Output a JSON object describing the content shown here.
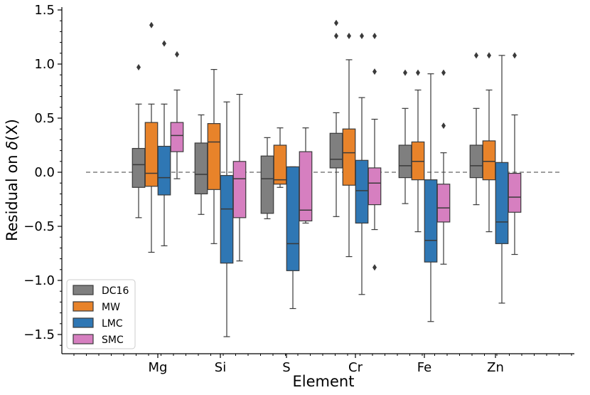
{
  "chart_data": {
    "type": "boxplot",
    "xlabel": "Element",
    "ylabel_prefix": "Residual on ",
    "ylabel_symbol": "δ",
    "ylabel_suffix": "(X)",
    "ylim": [
      -1.65,
      1.55
    ],
    "yticks": [
      1.5,
      1.0,
      0.5,
      0.0,
      -0.5,
      -1.0,
      -1.5
    ],
    "ytick_labels": [
      "1.5",
      "1.0",
      "0.5",
      "0.0",
      "−0.5",
      "−1.0",
      "−1.5"
    ],
    "categories": [
      "Mg",
      "Si",
      "S",
      "Cr",
      "Fe",
      "Zn"
    ],
    "reference_line": 0.0,
    "legend_position": "lower-left",
    "series": [
      {
        "name": "DC16",
        "color": "#7f7f7f",
        "boxes": [
          {
            "whislo": -0.42,
            "q1": -0.14,
            "med": 0.07,
            "q3": 0.22,
            "whishi": 0.63,
            "fliers": [
              0.97
            ]
          },
          {
            "whislo": -0.39,
            "q1": -0.2,
            "med": -0.02,
            "q3": 0.27,
            "whishi": 0.53,
            "fliers": []
          },
          {
            "whislo": -0.43,
            "q1": -0.38,
            "med": -0.06,
            "q3": 0.15,
            "whishi": 0.32,
            "fliers": []
          },
          {
            "whislo": -0.41,
            "q1": 0.04,
            "med": 0.12,
            "q3": 0.36,
            "whishi": 0.55,
            "fliers": [
              1.26,
              1.38
            ]
          },
          {
            "whislo": -0.29,
            "q1": -0.05,
            "med": 0.06,
            "q3": 0.25,
            "whishi": 0.59,
            "fliers": [
              0.92
            ]
          },
          {
            "whislo": -0.3,
            "q1": -0.05,
            "med": 0.06,
            "q3": 0.25,
            "whishi": 0.59,
            "fliers": [
              1.08
            ]
          }
        ]
      },
      {
        "name": "MW",
        "color": "#e8832a",
        "boxes": [
          {
            "whislo": -0.74,
            "q1": -0.13,
            "med": -0.01,
            "q3": 0.46,
            "whishi": 0.63,
            "fliers": [
              1.36
            ]
          },
          {
            "whislo": -0.66,
            "q1": -0.16,
            "med": 0.28,
            "q3": 0.45,
            "whishi": 0.95,
            "fliers": []
          },
          {
            "whislo": -0.14,
            "q1": -0.11,
            "med": -0.07,
            "q3": 0.25,
            "whishi": 0.41,
            "fliers": []
          },
          {
            "whislo": -0.78,
            "q1": -0.12,
            "med": 0.18,
            "q3": 0.4,
            "whishi": 1.04,
            "fliers": [
              1.26
            ]
          },
          {
            "whislo": -0.55,
            "q1": -0.07,
            "med": 0.1,
            "q3": 0.28,
            "whishi": 0.76,
            "fliers": [
              0.92
            ]
          },
          {
            "whislo": -0.55,
            "q1": -0.07,
            "med": 0.1,
            "q3": 0.29,
            "whishi": 0.76,
            "fliers": [
              1.08
            ]
          }
        ]
      },
      {
        "name": "LMC",
        "color": "#2f77b4",
        "boxes": [
          {
            "whislo": -0.68,
            "q1": -0.21,
            "med": -0.05,
            "q3": 0.24,
            "whishi": 0.63,
            "fliers": [
              1.19
            ]
          },
          {
            "whislo": -1.52,
            "q1": -0.84,
            "med": -0.34,
            "q3": -0.03,
            "whishi": 0.65,
            "fliers": []
          },
          {
            "whislo": -1.26,
            "q1": -0.91,
            "med": -0.66,
            "q3": 0.05,
            "whishi": 0.05,
            "fliers": []
          },
          {
            "whislo": -1.13,
            "q1": -0.47,
            "med": -0.17,
            "q3": 0.11,
            "whishi": 0.69,
            "fliers": [
              1.26
            ]
          },
          {
            "whislo": -1.38,
            "q1": -0.83,
            "med": -0.63,
            "q3": -0.07,
            "whishi": 0.91,
            "fliers": []
          },
          {
            "whislo": -1.21,
            "q1": -0.66,
            "med": -0.46,
            "q3": 0.09,
            "whishi": 1.08,
            "fliers": []
          }
        ]
      },
      {
        "name": "SMC",
        "color": "#d67fc0",
        "boxes": [
          {
            "whislo": -0.06,
            "q1": 0.19,
            "med": 0.34,
            "q3": 0.46,
            "whishi": 0.76,
            "fliers": [
              1.09
            ]
          },
          {
            "whislo": -0.82,
            "q1": -0.42,
            "med": -0.06,
            "q3": 0.1,
            "whishi": 0.72,
            "fliers": []
          },
          {
            "whislo": -0.47,
            "q1": -0.45,
            "med": -0.35,
            "q3": 0.19,
            "whishi": 0.41,
            "fliers": []
          },
          {
            "whislo": -0.53,
            "q1": -0.3,
            "med": -0.1,
            "q3": 0.04,
            "whishi": 0.49,
            "fliers": [
              0.93,
              1.26,
              -0.88
            ]
          },
          {
            "whislo": -0.85,
            "q1": -0.46,
            "med": -0.33,
            "q3": -0.11,
            "whishi": 0.18,
            "fliers": [
              0.43,
              0.92
            ]
          },
          {
            "whislo": -0.76,
            "q1": -0.37,
            "med": -0.23,
            "q3": -0.01,
            "whishi": 0.53,
            "fliers": [
              1.08
            ]
          }
        ]
      }
    ]
  }
}
